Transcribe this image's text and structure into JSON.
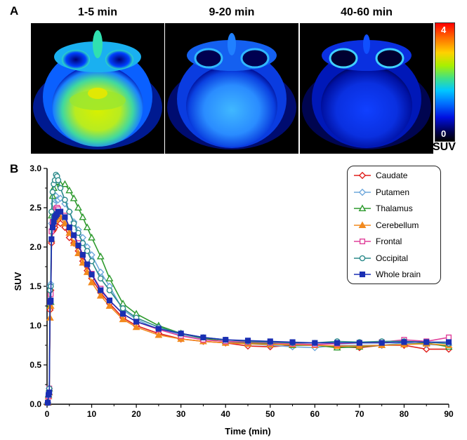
{
  "panels": {
    "a_label": "A",
    "b_label": "B"
  },
  "images": [
    {
      "title": "1-5 min",
      "intensity": 0.85
    },
    {
      "title": "9-20 min",
      "intensity": 0.45
    },
    {
      "title": "40-60 min",
      "intensity": 0.25
    }
  ],
  "colorbar": {
    "max_label": "4",
    "min_label": "0",
    "unit": "SUV"
  },
  "chart_data": {
    "type": "line",
    "title": "",
    "xlabel": "Time (min)",
    "ylabel": "SUV",
    "xlim": [
      0,
      90
    ],
    "ylim": [
      0,
      3.0
    ],
    "xticks": [
      "0",
      "10",
      "20",
      "30",
      "40",
      "50",
      "60",
      "70",
      "80",
      "90"
    ],
    "yticks": [
      "0.0",
      "0.5",
      "1.0",
      "1.5",
      "2.0",
      "2.5",
      "3.0"
    ],
    "legend_position": "top-right",
    "series": [
      {
        "name": "Caudate",
        "color": "#e0201c",
        "marker": "diamond",
        "filled": false,
        "x": [
          0.17,
          0.33,
          0.5,
          0.67,
          0.83,
          1,
          1.25,
          1.5,
          1.75,
          2,
          2.25,
          2.5,
          3,
          4,
          5,
          6,
          7,
          8,
          9,
          10,
          12,
          14,
          17,
          20,
          25,
          30,
          35,
          40,
          45,
          50,
          55,
          60,
          65,
          70,
          75,
          80,
          85,
          90
        ],
        "y": [
          0.02,
          0.1,
          0.2,
          1.2,
          1.45,
          2.05,
          2.2,
          2.22,
          2.25,
          2.3,
          2.33,
          2.35,
          2.3,
          2.25,
          2.12,
          2.05,
          1.95,
          1.82,
          1.7,
          1.6,
          1.42,
          1.28,
          1.1,
          1.0,
          0.9,
          0.83,
          0.8,
          0.78,
          0.74,
          0.73,
          0.75,
          0.75,
          0.73,
          0.72,
          0.75,
          0.75,
          0.7,
          0.7
        ]
      },
      {
        "name": "Putamen",
        "color": "#6fa8dc",
        "marker": "diamond",
        "filled": false,
        "x": [
          0.17,
          0.33,
          0.5,
          0.67,
          0.83,
          1,
          1.25,
          1.5,
          1.75,
          2,
          2.25,
          2.5,
          3,
          4,
          5,
          6,
          7,
          8,
          9,
          10,
          12,
          14,
          17,
          20,
          25,
          30,
          35,
          40,
          45,
          50,
          55,
          60,
          65,
          70,
          75,
          80,
          85,
          90
        ],
        "y": [
          0.02,
          0.1,
          0.2,
          1.5,
          1.53,
          2.3,
          2.45,
          2.55,
          2.6,
          2.65,
          2.6,
          2.6,
          2.62,
          2.55,
          2.45,
          2.32,
          2.22,
          2.12,
          2.0,
          1.9,
          1.68,
          1.5,
          1.2,
          1.08,
          0.95,
          0.88,
          0.83,
          0.8,
          0.77,
          0.75,
          0.73,
          0.72,
          0.75,
          0.75,
          0.75,
          0.78,
          0.76,
          0.75
        ]
      },
      {
        "name": "Thalamus",
        "color": "#2e9a2e",
        "marker": "triangle",
        "filled": false,
        "x": [
          0.17,
          0.33,
          0.5,
          0.67,
          0.83,
          1,
          1.25,
          1.5,
          1.75,
          2,
          2.25,
          2.5,
          3,
          4,
          5,
          6,
          7,
          8,
          9,
          10,
          12,
          14,
          17,
          20,
          25,
          30,
          35,
          40,
          45,
          50,
          55,
          60,
          65,
          70,
          75,
          80,
          85,
          90
        ],
        "y": [
          0.02,
          0.12,
          0.2,
          1.25,
          1.3,
          2.4,
          2.65,
          2.75,
          2.82,
          2.85,
          2.83,
          2.85,
          2.8,
          2.8,
          2.72,
          2.62,
          2.5,
          2.38,
          2.25,
          2.12,
          1.88,
          1.6,
          1.28,
          1.15,
          1.0,
          0.9,
          0.84,
          0.8,
          0.78,
          0.77,
          0.75,
          0.75,
          0.72,
          0.73,
          0.75,
          0.76,
          0.78,
          0.73
        ]
      },
      {
        "name": "Cerebellum",
        "color": "#f28a1e",
        "marker": "triangle",
        "filled": true,
        "x": [
          0.17,
          0.33,
          0.5,
          0.67,
          0.83,
          1,
          1.25,
          1.5,
          1.75,
          2,
          2.25,
          2.5,
          3,
          4,
          5,
          6,
          7,
          8,
          9,
          10,
          12,
          14,
          17,
          20,
          25,
          30,
          35,
          40,
          45,
          50,
          55,
          60,
          65,
          70,
          75,
          80,
          85,
          90
        ],
        "y": [
          0.02,
          0.1,
          0.15,
          1.1,
          1.25,
          2.1,
          2.25,
          2.32,
          2.35,
          2.35,
          2.38,
          2.4,
          2.38,
          2.3,
          2.18,
          2.05,
          1.92,
          1.8,
          1.68,
          1.55,
          1.38,
          1.25,
          1.08,
          0.98,
          0.88,
          0.83,
          0.8,
          0.78,
          0.77,
          0.76,
          0.76,
          0.75,
          0.74,
          0.74,
          0.75,
          0.76,
          0.77,
          0.75
        ]
      },
      {
        "name": "Frontal",
        "color": "#e0409a",
        "marker": "square",
        "filled": false,
        "x": [
          0.17,
          0.33,
          0.5,
          0.67,
          0.83,
          1,
          1.25,
          1.5,
          1.75,
          2,
          2.25,
          2.5,
          3,
          4,
          5,
          6,
          7,
          8,
          9,
          10,
          12,
          14,
          17,
          20,
          25,
          30,
          35,
          40,
          45,
          50,
          55,
          60,
          65,
          70,
          75,
          80,
          85,
          90
        ],
        "y": [
          0.02,
          0.1,
          0.2,
          1.3,
          1.4,
          2.2,
          2.32,
          2.4,
          2.45,
          2.48,
          2.5,
          2.48,
          2.45,
          2.4,
          2.25,
          2.15,
          2.05,
          1.9,
          1.78,
          1.66,
          1.47,
          1.32,
          1.15,
          1.05,
          0.95,
          0.87,
          0.82,
          0.8,
          0.79,
          0.78,
          0.77,
          0.76,
          0.77,
          0.78,
          0.79,
          0.82,
          0.8,
          0.85
        ]
      },
      {
        "name": "Occipital",
        "color": "#2b8a8a",
        "marker": "circle",
        "filled": false,
        "x": [
          0.17,
          0.33,
          0.5,
          0.67,
          0.83,
          1,
          1.25,
          1.5,
          1.75,
          2,
          2.25,
          2.5,
          3,
          4,
          5,
          6,
          7,
          8,
          9,
          10,
          12,
          14,
          17,
          20,
          25,
          30,
          35,
          40,
          45,
          50,
          55,
          60,
          65,
          70,
          75,
          80,
          85,
          90
        ],
        "y": [
          0.02,
          0.12,
          0.2,
          1.45,
          1.5,
          2.45,
          2.7,
          2.8,
          2.85,
          2.92,
          2.9,
          2.85,
          2.75,
          2.6,
          2.45,
          2.3,
          2.18,
          2.05,
          1.95,
          1.82,
          1.6,
          1.45,
          1.22,
          1.1,
          0.98,
          0.9,
          0.85,
          0.82,
          0.8,
          0.79,
          0.78,
          0.78,
          0.8,
          0.79,
          0.8,
          0.8,
          0.79,
          0.77
        ]
      },
      {
        "name": "Whole brain",
        "color": "#1a2fb3",
        "marker": "square",
        "filled": true,
        "x": [
          0.17,
          0.33,
          0.5,
          0.67,
          0.83,
          1,
          1.25,
          1.5,
          1.75,
          2,
          2.25,
          2.5,
          3,
          4,
          5,
          6,
          7,
          8,
          9,
          10,
          12,
          14,
          17,
          20,
          25,
          30,
          35,
          40,
          45,
          50,
          55,
          60,
          65,
          70,
          75,
          80,
          85,
          90
        ],
        "y": [
          0.02,
          0.12,
          0.15,
          1.3,
          1.32,
          2.1,
          2.25,
          2.32,
          2.38,
          2.4,
          2.42,
          2.45,
          2.45,
          2.38,
          2.25,
          2.15,
          2.02,
          1.9,
          1.78,
          1.65,
          1.45,
          1.32,
          1.15,
          1.05,
          0.96,
          0.9,
          0.85,
          0.82,
          0.81,
          0.8,
          0.79,
          0.78,
          0.78,
          0.78,
          0.78,
          0.79,
          0.79,
          0.79
        ]
      }
    ]
  }
}
